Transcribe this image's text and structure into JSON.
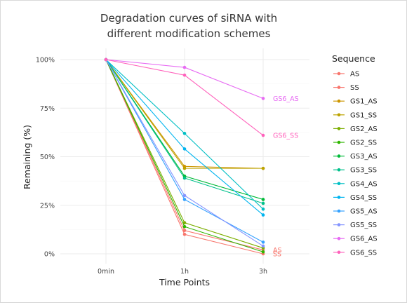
{
  "chart_data": {
    "type": "line",
    "title_lines": [
      "Degradation curves of siRNA with",
      "different modification schemes"
    ],
    "xlabel": "Time Points",
    "ylabel": "Remaining (%)",
    "categories": [
      "0min",
      "1h",
      "3h"
    ],
    "y_ticks": [
      "0%",
      "25%",
      "50%",
      "75%",
      "100%"
    ],
    "ylim": [
      0,
      100
    ],
    "grid": true,
    "legend_title": "Sequence",
    "legend_placement": "right",
    "series": [
      {
        "name": "AS",
        "color": "#F8766D",
        "values": [
          100,
          12,
          2
        ]
      },
      {
        "name": "SS",
        "color": "#F8766D",
        "values": [
          100,
          10,
          0
        ]
      },
      {
        "name": "GS1_AS",
        "color": "#CD9600",
        "values": [
          100,
          45,
          44
        ]
      },
      {
        "name": "GS1_SS",
        "color": "#BCA300",
        "values": [
          100,
          44,
          44
        ]
      },
      {
        "name": "GS2_AS",
        "color": "#7CAE00",
        "values": [
          100,
          16,
          3
        ]
      },
      {
        "name": "GS2_SS",
        "color": "#2FB600",
        "values": [
          100,
          14,
          1
        ]
      },
      {
        "name": "GS3_AS",
        "color": "#00BA38",
        "values": [
          100,
          40,
          28
        ]
      },
      {
        "name": "GS3_SS",
        "color": "#00C08B",
        "values": [
          100,
          39,
          26
        ]
      },
      {
        "name": "GS4_AS",
        "color": "#00BFC4",
        "values": [
          100,
          62,
          23
        ]
      },
      {
        "name": "GS4_SS",
        "color": "#00B4EF",
        "values": [
          100,
          54,
          20
        ]
      },
      {
        "name": "GS5_AS",
        "color": "#35A2FF",
        "values": [
          100,
          28,
          6
        ]
      },
      {
        "name": "GS5_SS",
        "color": "#8494FF",
        "values": [
          100,
          30,
          4
        ]
      },
      {
        "name": "GS6_AS",
        "color": "#E76BF3",
        "values": [
          100,
          96,
          80
        ]
      },
      {
        "name": "GS6_SS",
        "color": "#FF62BC",
        "values": [
          100,
          92,
          61
        ]
      }
    ],
    "annotations": [
      {
        "text": "GS6_AS",
        "series": "GS6_AS"
      },
      {
        "text": "GS6_SS",
        "series": "GS6_SS"
      },
      {
        "text": "AS",
        "series": "AS"
      },
      {
        "text": "SS",
        "series": "SS"
      }
    ]
  }
}
